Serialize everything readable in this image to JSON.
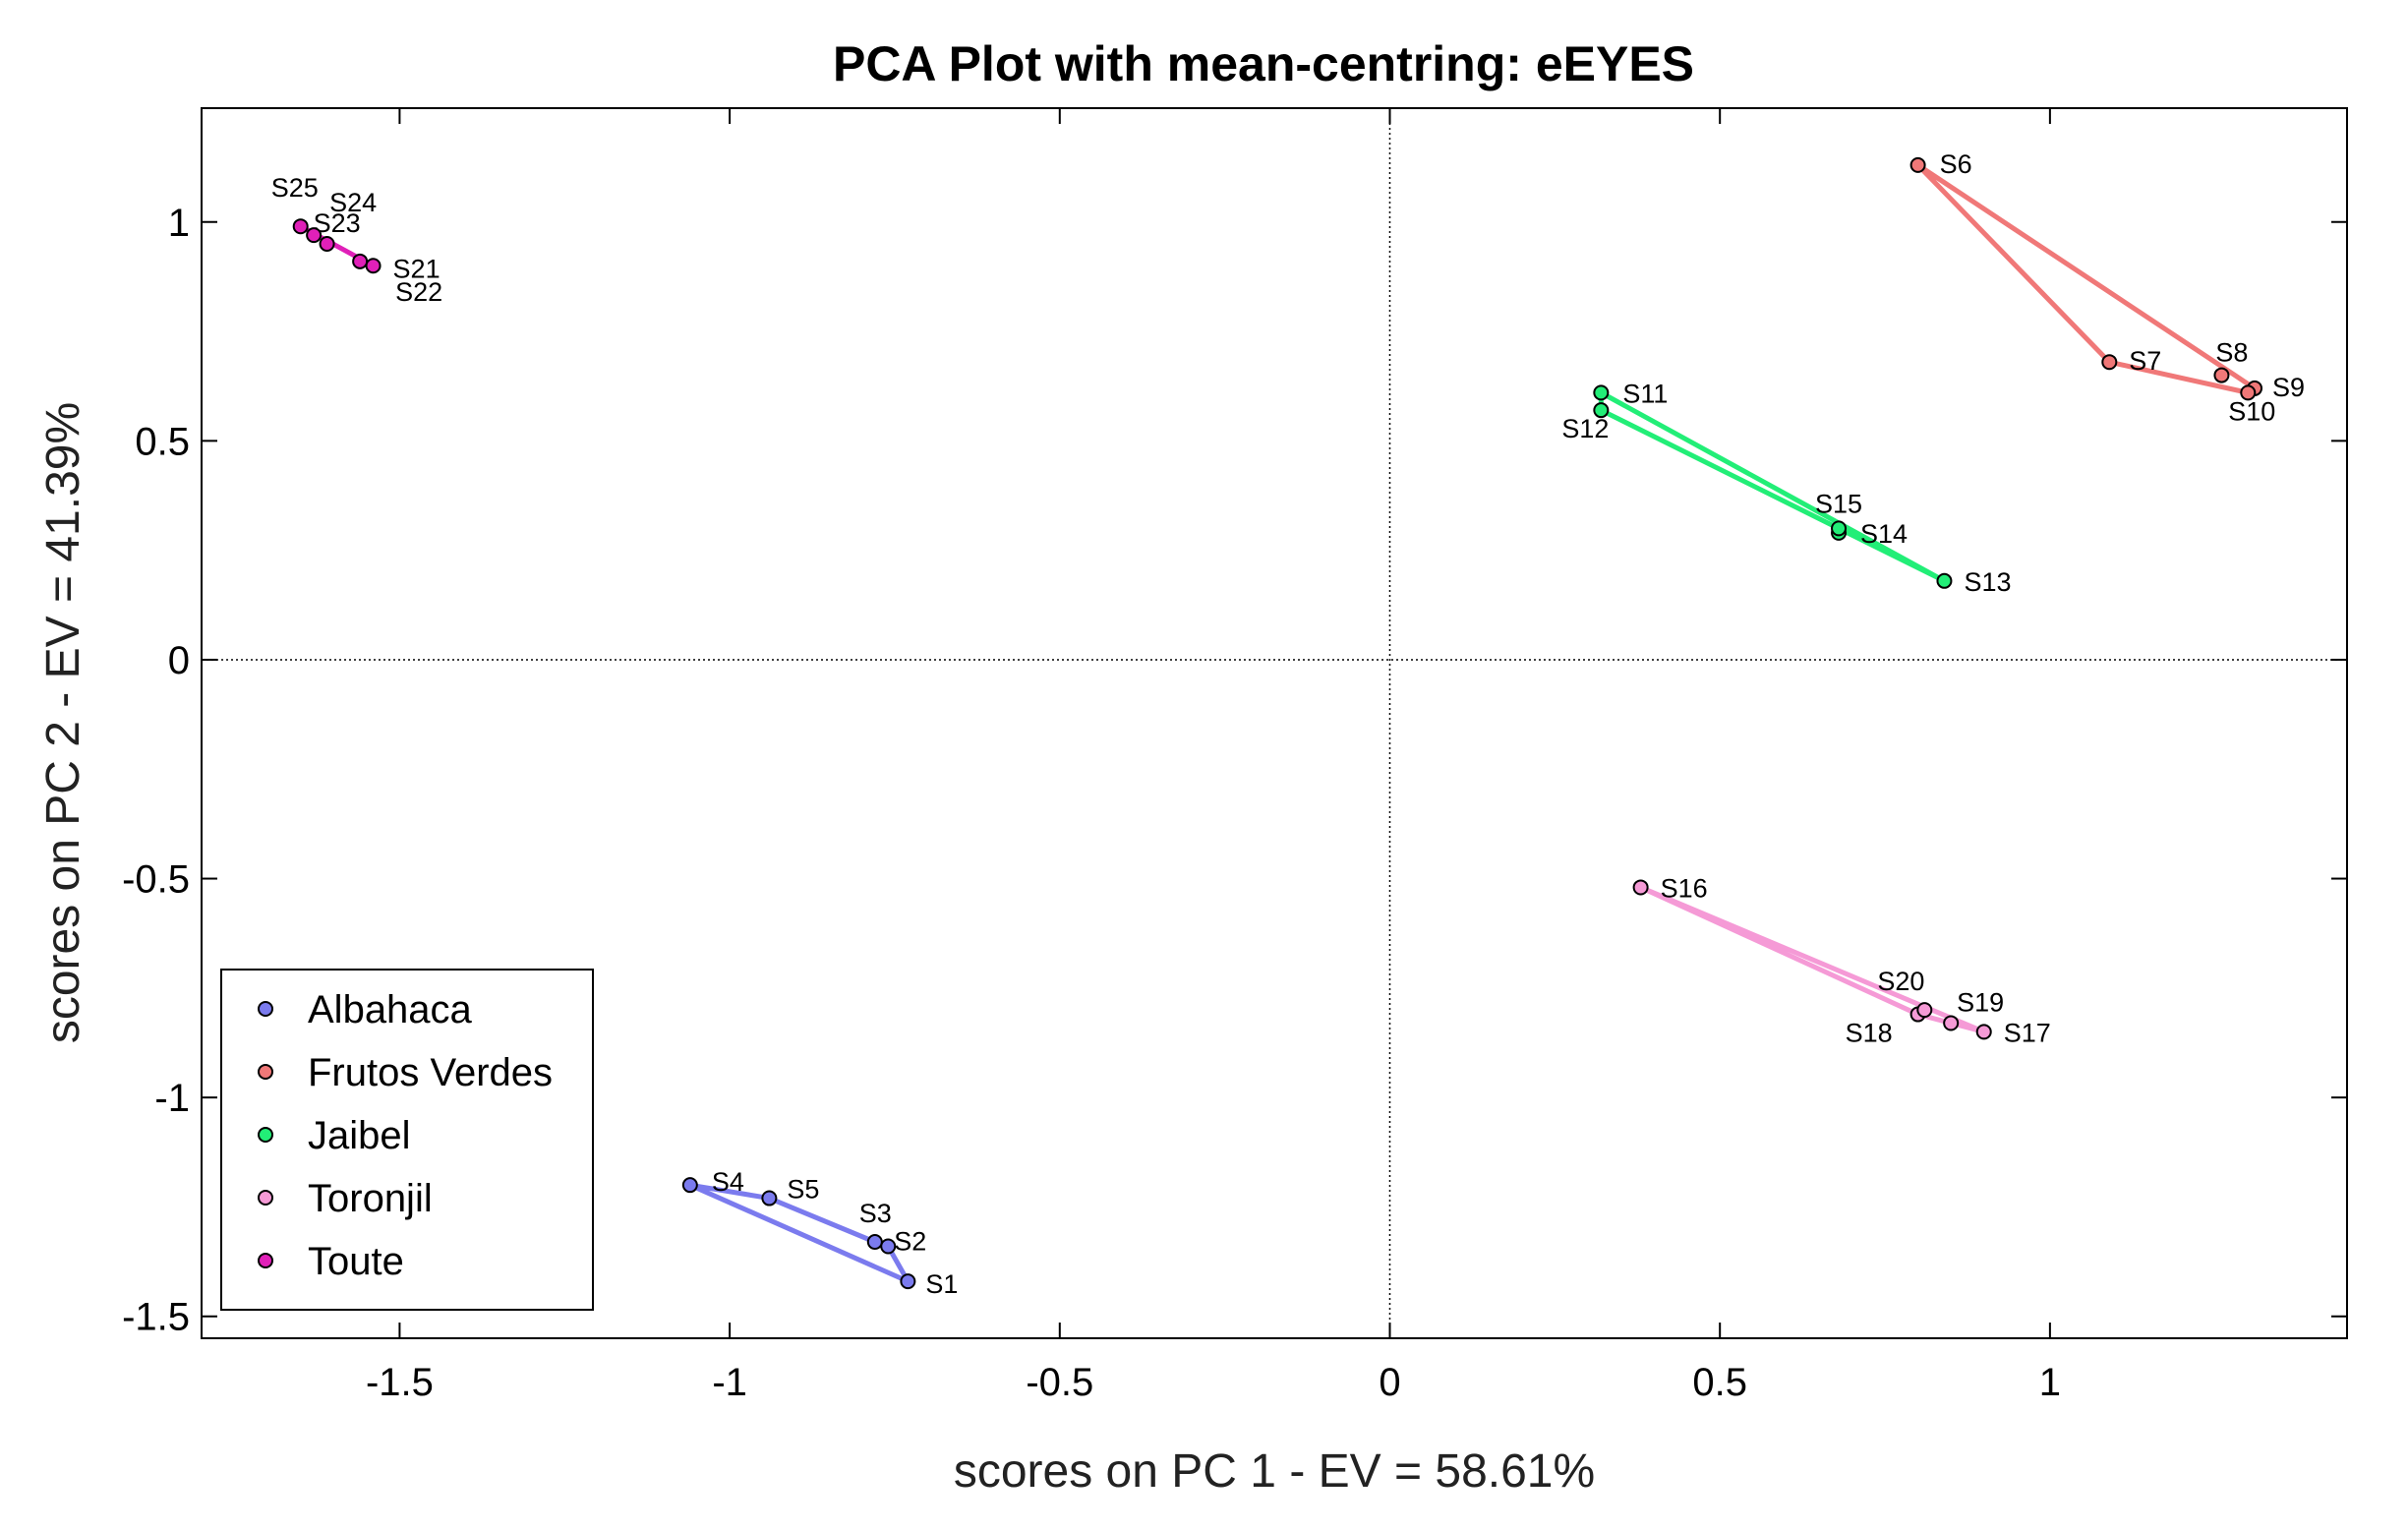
{
  "chart_data": {
    "type": "scatter",
    "title": "PCA Plot with mean-centring: eEYES",
    "xlabel": "scores on PC 1 - EV = 58.61%",
    "ylabel": "scores on PC 2 - EV = 41.39%",
    "xlim": [
      -1.8,
      1.45
    ],
    "ylim": [
      -1.55,
      1.26
    ],
    "xticks": [
      -1.5,
      -1,
      -0.5,
      0,
      0.5,
      1
    ],
    "yticks": [
      -1.5,
      -1,
      -0.5,
      0,
      0.5,
      1
    ],
    "xtick_labels": [
      "-1.5",
      "-1",
      "-0.5",
      "0",
      "0.5",
      "1"
    ],
    "ytick_labels": [
      "-1.5",
      "-1",
      "-0.5",
      "0",
      "0.5",
      "1"
    ],
    "reference_lines": {
      "x": 0,
      "y": 0,
      "style": "dotted"
    },
    "legend_position": "bottom-left",
    "series": [
      {
        "name": "Albahaca",
        "color": "#7b7bee",
        "hull": [
          "S4",
          "S1",
          "S2",
          "S3",
          "S5",
          "S4"
        ],
        "points": [
          {
            "label": "S1",
            "x": -0.73,
            "y": -1.42
          },
          {
            "label": "S2",
            "x": -0.76,
            "y": -1.34
          },
          {
            "label": "S3",
            "x": -0.78,
            "y": -1.33
          },
          {
            "label": "S4",
            "x": -1.06,
            "y": -1.2
          },
          {
            "label": "S5",
            "x": -0.94,
            "y": -1.23
          }
        ]
      },
      {
        "name": "Frutos Verdes",
        "color": "#f07878",
        "hull": [
          "S6",
          "S9",
          "S10",
          "S7",
          "S6"
        ],
        "points": [
          {
            "label": "S6",
            "x": 0.8,
            "y": 1.13
          },
          {
            "label": "S7",
            "x": 1.09,
            "y": 0.68
          },
          {
            "label": "S8",
            "x": 1.26,
            "y": 0.65
          },
          {
            "label": "S9",
            "x": 1.31,
            "y": 0.62
          },
          {
            "label": "S10",
            "x": 1.3,
            "y": 0.61
          }
        ]
      },
      {
        "name": "Jaibel",
        "color": "#22ee77",
        "hull": [
          "S11",
          "S13",
          "S12",
          "S11"
        ],
        "points": [
          {
            "label": "S11",
            "x": 0.32,
            "y": 0.61
          },
          {
            "label": "S12",
            "x": 0.32,
            "y": 0.57
          },
          {
            "label": "S13",
            "x": 0.84,
            "y": 0.18
          },
          {
            "label": "S14",
            "x": 0.68,
            "y": 0.29
          },
          {
            "label": "S15",
            "x": 0.68,
            "y": 0.3
          }
        ]
      },
      {
        "name": "Toronjil",
        "color": "#f59ad6",
        "hull": [
          "S16",
          "S17",
          "S18",
          "S16"
        ],
        "points": [
          {
            "label": "S16",
            "x": 0.38,
            "y": -0.52
          },
          {
            "label": "S17",
            "x": 0.9,
            "y": -0.85
          },
          {
            "label": "S18",
            "x": 0.8,
            "y": -0.81
          },
          {
            "label": "S19",
            "x": 0.85,
            "y": -0.83
          },
          {
            "label": "S20",
            "x": 0.81,
            "y": -0.8
          }
        ]
      },
      {
        "name": "Toute",
        "color": "#e020b8",
        "hull": [
          "S25",
          "S21",
          "S25"
        ],
        "points": [
          {
            "label": "S21",
            "x": -1.54,
            "y": 0.9
          },
          {
            "label": "S22",
            "x": -1.56,
            "y": 0.91
          },
          {
            "label": "S23",
            "x": -1.61,
            "y": 0.95
          },
          {
            "label": "S24",
            "x": -1.63,
            "y": 0.97
          },
          {
            "label": "S25",
            "x": -1.65,
            "y": 0.99
          }
        ]
      }
    ]
  }
}
